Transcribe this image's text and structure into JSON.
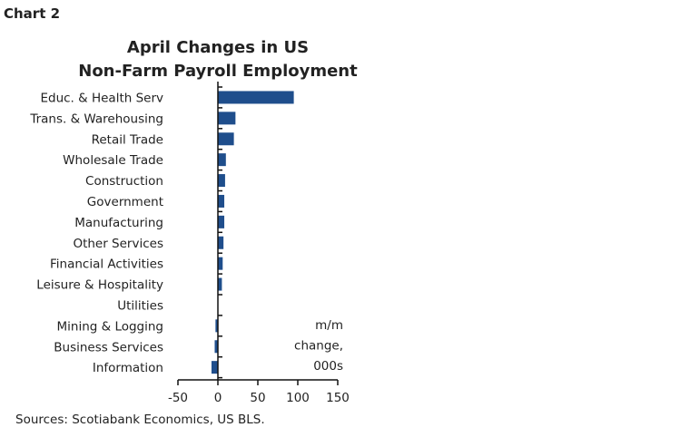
{
  "chart_label": "Chart 2",
  "source": "Sources: Scotiabank Economics, US BLS.",
  "chart_data": {
    "type": "bar",
    "orientation": "horizontal",
    "title": "April Changes in US Non-Farm Payroll Employment",
    "title_lines": [
      "April Changes in US",
      "Non-Farm Payroll Employment"
    ],
    "categories": [
      "Educ. & Health Serv",
      "Trans. & Warehousing",
      "Retail Trade",
      "Wholesale Trade",
      "Construction",
      "Government",
      "Manufacturing",
      "Other Services",
      "Financial Activities",
      "Leisure & Hospitality",
      "Utilities",
      "Mining & Logging",
      "Business Services",
      "Information"
    ],
    "values": [
      95,
      22,
      20,
      10,
      9,
      8,
      8,
      7,
      6,
      5,
      0,
      -3,
      -4,
      -8
    ],
    "xlim": [
      -50,
      150
    ],
    "xticks": [
      -50,
      0,
      50,
      100,
      150
    ],
    "unit_label_lines": [
      "m/m",
      "change,",
      "000s"
    ],
    "grid": false,
    "bar_color": "#1f4e8c"
  }
}
